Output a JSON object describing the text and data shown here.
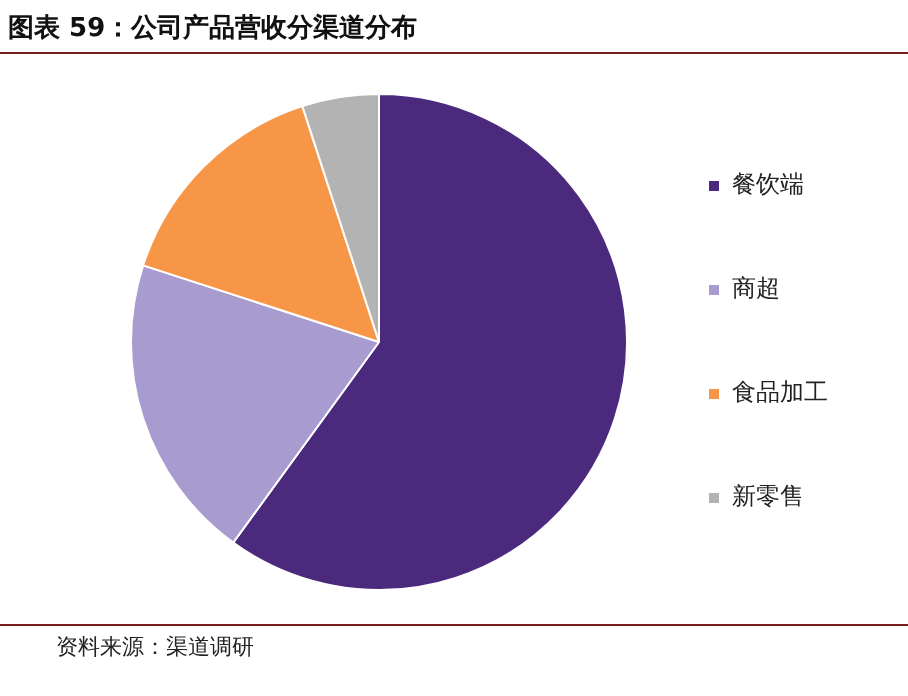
{
  "chart_data": {
    "type": "pie",
    "title": "图表 59：公司产品营收分渠道分布",
    "categories": [
      "餐饮端",
      "商超",
      "食品加工",
      "新零售"
    ],
    "values": [
      60,
      20,
      15,
      5
    ],
    "colors": [
      "#4b2a7e",
      "#a89bd0",
      "#f79646",
      "#b3b3b3"
    ],
    "legend": "right",
    "annotations": [
      "资料来源：渠道调研"
    ]
  }
}
